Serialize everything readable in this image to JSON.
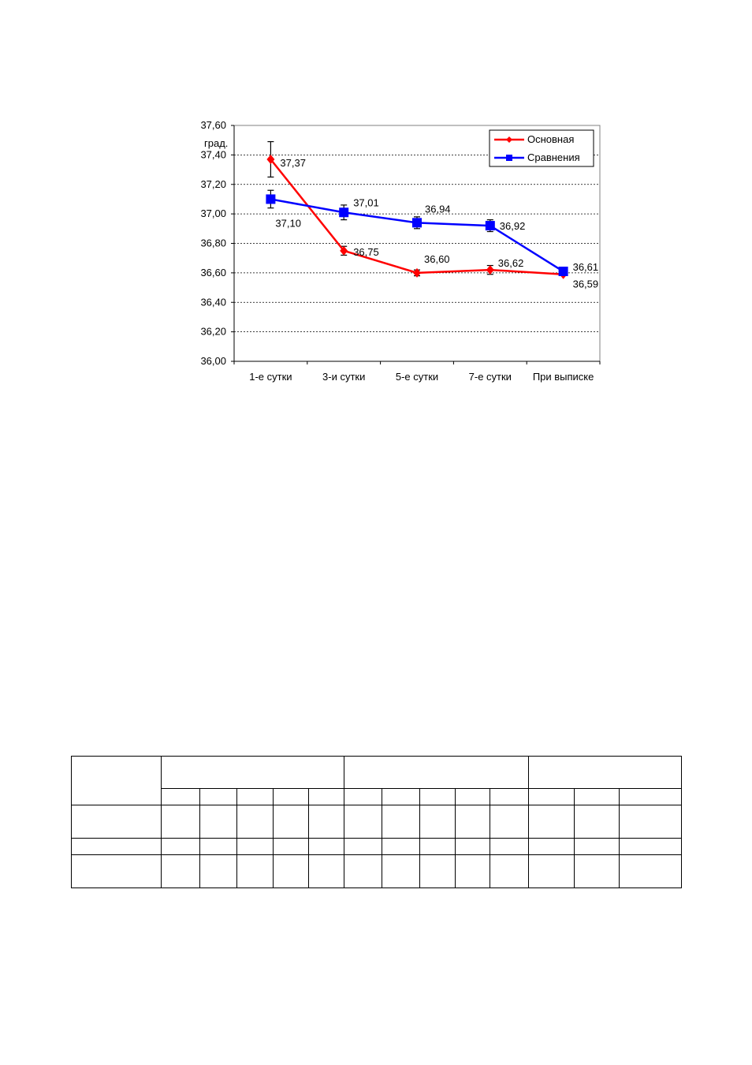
{
  "chart_data": {
    "type": "line",
    "ylabel": "град.",
    "categories": [
      "1-е сутки",
      "3-и сутки",
      "5-е сутки",
      "7-е сутки",
      "При выписке"
    ],
    "ylim": [
      36.0,
      37.6
    ],
    "yticks": [
      "36,00",
      "36,20",
      "36,40",
      "36,60",
      "36,80",
      "37,00",
      "37,20",
      "37,40",
      "37,60"
    ],
    "grid": true,
    "legend": "top-right",
    "series": [
      {
        "name": "Основная",
        "color": "#ff0000",
        "marker": "diamond",
        "values": [
          37.37,
          36.75,
          36.6,
          36.62,
          36.59
        ],
        "labels": [
          "37,37",
          "36,75",
          "36,60",
          "36,62",
          "36,59"
        ],
        "errors": [
          0.12,
          0.03,
          0.02,
          0.03,
          0.0
        ]
      },
      {
        "name": "Сравнения",
        "color": "#0000ff",
        "marker": "square",
        "values": [
          37.1,
          37.01,
          36.94,
          36.92,
          36.61
        ],
        "labels": [
          "37,10",
          "37,01",
          "36,94",
          "36,92",
          "36,61"
        ],
        "errors": [
          0.06,
          0.05,
          0.04,
          0.04,
          0.0
        ]
      }
    ]
  }
}
